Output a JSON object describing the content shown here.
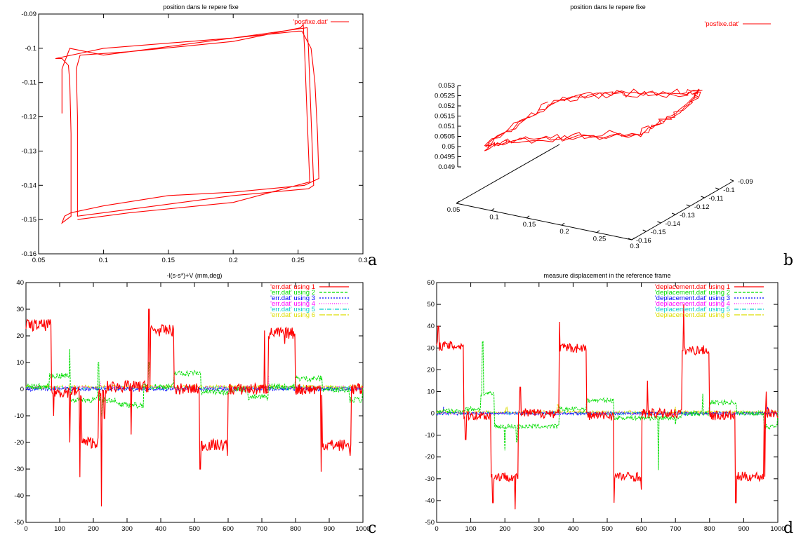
{
  "chart_data": [
    {
      "id": "a",
      "type": "line",
      "panel_label": "a",
      "title": "position dans le repere fixe",
      "xlim": [
        0.05,
        0.3
      ],
      "ylim": [
        -0.16,
        -0.09
      ],
      "xticks": [
        "0.05",
        "0.1",
        "0.15",
        "0.2",
        "0.25",
        "0.3"
      ],
      "yticks": [
        "-0.09",
        "-0.1",
        "-0.11",
        "-0.12",
        "-0.13",
        "-0.14",
        "-0.15",
        "-0.16"
      ],
      "grid": false,
      "legend_position": "top-right",
      "series": [
        {
          "name": "'posfixe.dat'",
          "color": "#ff0000",
          "points": [
            [
              0.068,
              -0.119
            ],
            [
              0.068,
              -0.106
            ],
            [
              0.074,
              -0.1
            ],
            [
              0.1,
              -0.102
            ],
            [
              0.2,
              -0.097
            ],
            [
              0.25,
              -0.095
            ],
            [
              0.253,
              -0.095
            ],
            [
              0.26,
              -0.1
            ],
            [
              0.263,
              -0.11
            ],
            [
              0.265,
              -0.125
            ],
            [
              0.266,
              -0.138
            ],
            [
              0.255,
              -0.14
            ],
            [
              0.2,
              -0.142
            ],
            [
              0.15,
              -0.143
            ],
            [
              0.1,
              -0.146
            ],
            [
              0.075,
              -0.148
            ],
            [
              0.07,
              -0.149
            ],
            [
              0.068,
              -0.151
            ],
            [
              0.075,
              -0.149
            ],
            [
              0.075,
              -0.14
            ],
            [
              0.075,
              -0.125
            ],
            [
              0.074,
              -0.11
            ],
            [
              0.073,
              -0.105
            ],
            [
              0.068,
              -0.103
            ],
            [
              0.063,
              -0.103
            ],
            [
              0.1,
              -0.1
            ],
            [
              0.2,
              -0.097
            ],
            [
              0.257,
              -0.094
            ],
            [
              0.258,
              -0.1
            ],
            [
              0.26,
              -0.12
            ],
            [
              0.262,
              -0.14
            ],
            [
              0.258,
              -0.141
            ],
            [
              0.2,
              -0.143
            ],
            [
              0.1,
              -0.148
            ],
            [
              0.08,
              -0.149
            ],
            [
              0.08,
              -0.14
            ],
            [
              0.08,
              -0.12
            ],
            [
              0.079,
              -0.106
            ],
            [
              0.082,
              -0.102
            ],
            [
              0.12,
              -0.101
            ],
            [
              0.2,
              -0.098
            ],
            [
              0.252,
              -0.094
            ],
            [
              0.254,
              -0.093
            ],
            [
              0.255,
              -0.1
            ],
            [
              0.257,
              -0.12
            ],
            [
              0.259,
              -0.139
            ],
            [
              0.2,
              -0.145
            ],
            [
              0.12,
              -0.148
            ],
            [
              0.08,
              -0.15
            ]
          ]
        }
      ]
    },
    {
      "id": "b",
      "type": "line",
      "panel_label": "b",
      "title": "position dans le repere fixe",
      "zticks": [
        "0.053",
        "0.0525",
        "0.052",
        "0.0515",
        "0.051",
        "0.0505",
        "0.05",
        "0.0495",
        "0.049"
      ],
      "xticks": [
        "0.05",
        "0.1",
        "0.15",
        "0.2",
        "0.25",
        "0.3"
      ],
      "yticks": [
        "-0.09",
        "-0.1",
        "-0.11",
        "-0.12",
        "-0.13",
        "-0.14",
        "-0.15",
        "-0.16"
      ],
      "xlim": [
        0.05,
        0.3
      ],
      "ylim": [
        -0.16,
        -0.09
      ],
      "zlim": [
        0.049,
        0.053
      ],
      "legend_position": "top-right",
      "series": [
        {
          "name": "'posfixe.dat'",
          "color": "#ff0000",
          "points": [
            [
              0.06,
              -0.1,
              0.0508
            ],
            [
              0.1,
              -0.1,
              0.0514
            ],
            [
              0.15,
              -0.1,
              0.0518
            ],
            [
              0.2,
              -0.1,
              0.0522
            ],
            [
              0.25,
              -0.1,
              0.0525
            ],
            [
              0.27,
              -0.1,
              0.0528
            ],
            [
              0.28,
              -0.11,
              0.0527
            ],
            [
              0.28,
              -0.13,
              0.0526
            ],
            [
              0.27,
              -0.145,
              0.0524
            ],
            [
              0.2,
              -0.145,
              0.052
            ],
            [
              0.15,
              -0.148,
              0.0516
            ],
            [
              0.1,
              -0.15,
              0.0512
            ],
            [
              0.07,
              -0.15,
              0.0508
            ],
            [
              0.065,
              -0.12,
              0.0509
            ],
            [
              0.06,
              -0.1,
              0.0508
            ]
          ]
        }
      ]
    },
    {
      "id": "c",
      "type": "line",
      "panel_label": "c",
      "title": "-l(s-s*)+V    (mm,deg)",
      "xlim": [
        0,
        1000
      ],
      "ylim": [
        -50,
        40
      ],
      "xticks": [
        "0",
        "100",
        "200",
        "300",
        "400",
        "500",
        "600",
        "700",
        "800",
        "900",
        "1000"
      ],
      "yticks": [
        "40",
        "30",
        "20",
        "10",
        "0",
        "-10",
        "-20",
        "-30",
        "-40",
        "-50"
      ],
      "legend_position": "top-right",
      "series": [
        {
          "name": "'err.dat' using 1",
          "color": "#ff0000",
          "segments": [
            [
              0,
              75,
              24
            ],
            [
              75,
              165,
              -1
            ],
            [
              165,
              215,
              -20
            ],
            [
              215,
              240,
              -2
            ],
            [
              240,
              370,
              1
            ],
            [
              370,
              440,
              22
            ],
            [
              440,
              520,
              0
            ],
            [
              520,
              600,
              -21
            ],
            [
              600,
              720,
              0
            ],
            [
              720,
              800,
              21
            ],
            [
              800,
              880,
              0
            ],
            [
              880,
              965,
              -21
            ],
            [
              965,
              1000,
              0
            ]
          ],
          "spikes": [
            [
              82,
              -10
            ],
            [
              130,
              -20
            ],
            [
              160,
              -33
            ],
            [
              224,
              -44
            ],
            [
              233,
              -11
            ],
            [
              312,
              -17
            ],
            [
              365,
              30
            ],
            [
              517,
              -30
            ],
            [
              598,
              -25
            ],
            [
              708,
              22
            ],
            [
              768,
              17
            ],
            [
              876,
              -31
            ],
            [
              962,
              -25
            ]
          ]
        },
        {
          "name": "'err.dat' using 2",
          "color": "#00dd00",
          "segments": [
            [
              0,
              70,
              1
            ],
            [
              70,
              130,
              5
            ],
            [
              130,
              270,
              -4
            ],
            [
              270,
              350,
              -6
            ],
            [
              350,
              440,
              1
            ],
            [
              440,
              520,
              6
            ],
            [
              520,
              600,
              -1
            ],
            [
              600,
              660,
              0
            ],
            [
              660,
              720,
              -3
            ],
            [
              720,
              800,
              1
            ],
            [
              800,
              880,
              4
            ],
            [
              880,
              960,
              0
            ],
            [
              960,
              1000,
              -4
            ]
          ],
          "spikes": [
            [
              130,
              15
            ],
            [
              215,
              10
            ],
            [
              225,
              -10
            ],
            [
              365,
              10
            ]
          ]
        },
        {
          "name": "'err.dat' using 3",
          "color": "#0000ff",
          "segments": [
            [
              0,
              1000,
              0
            ]
          ],
          "spikes": []
        },
        {
          "name": "'err.dat' using 4",
          "color": "#ff00ff",
          "segments": [
            [
              0,
              1000,
              0.5
            ]
          ],
          "spikes": [
            [
              220,
              3
            ],
            [
              720,
              5
            ]
          ]
        },
        {
          "name": "'err.dat' using 5",
          "color": "#00cccc",
          "segments": [
            [
              0,
              1000,
              0.3
            ]
          ],
          "spikes": []
        },
        {
          "name": "'err.dat' using 6",
          "color": "#dddd00",
          "segments": [
            [
              0,
              1000,
              0.8
            ]
          ],
          "spikes": []
        }
      ]
    },
    {
      "id": "d",
      "type": "line",
      "panel_label": "d",
      "title": "measure displacement in the reference frame",
      "xlim": [
        0,
        1000
      ],
      "ylim": [
        -50,
        60
      ],
      "xticks": [
        "0",
        "100",
        "200",
        "300",
        "400",
        "500",
        "600",
        "700",
        "800",
        "900",
        "1000"
      ],
      "yticks": [
        "60",
        "50",
        "40",
        "30",
        "20",
        "10",
        "0",
        "-10",
        "-20",
        "-30",
        "-40",
        "-50"
      ],
      "legend_position": "top-right",
      "series": [
        {
          "name": "'deplacement.dat' using 1",
          "color": "#ff0000",
          "segments": [
            [
              0,
              80,
              31
            ],
            [
              80,
              160,
              -1
            ],
            [
              160,
              240,
              -29
            ],
            [
              240,
              360,
              0
            ],
            [
              360,
              440,
              30
            ],
            [
              440,
              520,
              -1
            ],
            [
              520,
              600,
              -29
            ],
            [
              600,
              720,
              0
            ],
            [
              720,
              800,
              29
            ],
            [
              800,
              880,
              -1
            ],
            [
              880,
              960,
              -29
            ],
            [
              960,
              1000,
              0
            ]
          ],
          "spikes": [
            [
              5,
              40
            ],
            [
              85,
              -12
            ],
            [
              165,
              -41
            ],
            [
              230,
              -44
            ],
            [
              245,
              12
            ],
            [
              360,
              42
            ],
            [
              520,
              -41
            ],
            [
              600,
              -35
            ],
            [
              618,
              15
            ],
            [
              724,
              50
            ],
            [
              877,
              -41
            ],
            [
              962,
              -29
            ],
            [
              966,
              10
            ]
          ]
        },
        {
          "name": "'deplacement.dat' using 2",
          "color": "#00dd00",
          "segments": [
            [
              0,
              80,
              1
            ],
            [
              80,
              130,
              2
            ],
            [
              130,
              170,
              9
            ],
            [
              170,
              240,
              -6
            ],
            [
              240,
              360,
              -6
            ],
            [
              360,
              440,
              2
            ],
            [
              440,
              520,
              6
            ],
            [
              520,
              600,
              -2
            ],
            [
              600,
              720,
              -2
            ],
            [
              720,
              800,
              0
            ],
            [
              800,
              880,
              5
            ],
            [
              880,
              960,
              0
            ],
            [
              960,
              1000,
              -6
            ]
          ],
          "spikes": [
            [
              135,
              33
            ],
            [
              200,
              -17
            ],
            [
              235,
              -13
            ],
            [
              650,
              -26
            ],
            [
              700,
              -5
            ],
            [
              780,
              9
            ]
          ]
        },
        {
          "name": "'deplacement.dat' using 3",
          "color": "#0000ff",
          "segments": [
            [
              0,
              1000,
              0
            ]
          ],
          "spikes": [
            [
              20,
              3
            ],
            [
              970,
              3
            ]
          ]
        },
        {
          "name": "'deplacement.dat' using 4",
          "color": "#ff00ff",
          "segments": [
            [
              0,
              1000,
              0
            ]
          ],
          "spikes": []
        },
        {
          "name": "'deplacement.dat' using 5",
          "color": "#00cccc",
          "segments": [
            [
              0,
              1000,
              0
            ]
          ],
          "spikes": []
        },
        {
          "name": "'deplacement.dat' using 6",
          "color": "#dddd00",
          "segments": [
            [
              0,
              1000,
              0.5
            ]
          ],
          "spikes": [
            [
              205,
              3
            ],
            [
              355,
              4
            ],
            [
              700,
              3
            ]
          ]
        }
      ]
    }
  ]
}
